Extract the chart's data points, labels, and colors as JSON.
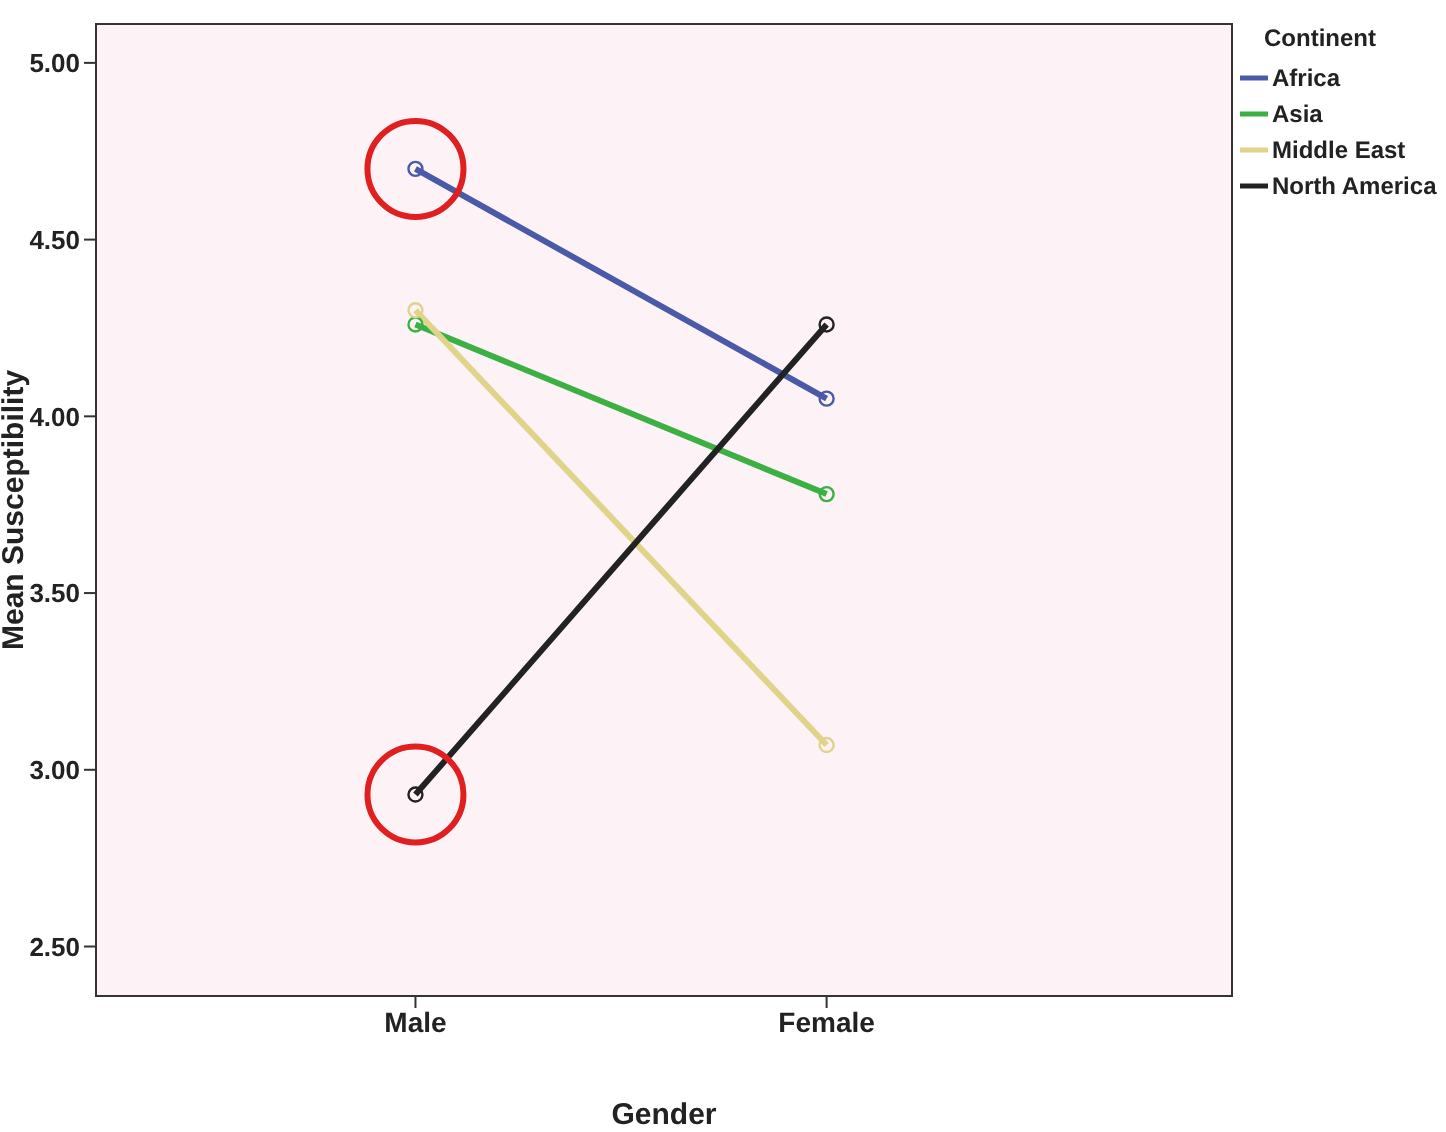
{
  "chart_data": {
    "type": "line",
    "xlabel": "Gender",
    "ylabel": "Mean Susceptibility",
    "legend_title": "Continent",
    "categories": [
      "Male",
      "Female"
    ],
    "series": [
      {
        "name": "Africa",
        "color": "#4a5aa8",
        "values": [
          4.7,
          4.05
        ]
      },
      {
        "name": "Asia",
        "color": "#3cb043",
        "values": [
          4.26,
          3.78
        ]
      },
      {
        "name": "Middle East",
        "color": "#e0d38a",
        "values": [
          4.3,
          3.07
        ]
      },
      {
        "name": "North America",
        "color": "#222222",
        "values": [
          2.93,
          4.26
        ]
      }
    ],
    "ylim": [
      2.36,
      5.11
    ],
    "yticks": [
      {
        "value": 2.5,
        "label": "2.50"
      },
      {
        "value": 3,
        "label": "3.00"
      },
      {
        "value": 3.5,
        "label": "3.50"
      },
      {
        "value": 4,
        "label": "4.00"
      },
      {
        "value": 4.5,
        "label": "4.50"
      },
      {
        "value": 5,
        "label": "5.00"
      }
    ],
    "legend": "right",
    "marker": "circle",
    "line_style": "solid",
    "grid": false
  }
}
